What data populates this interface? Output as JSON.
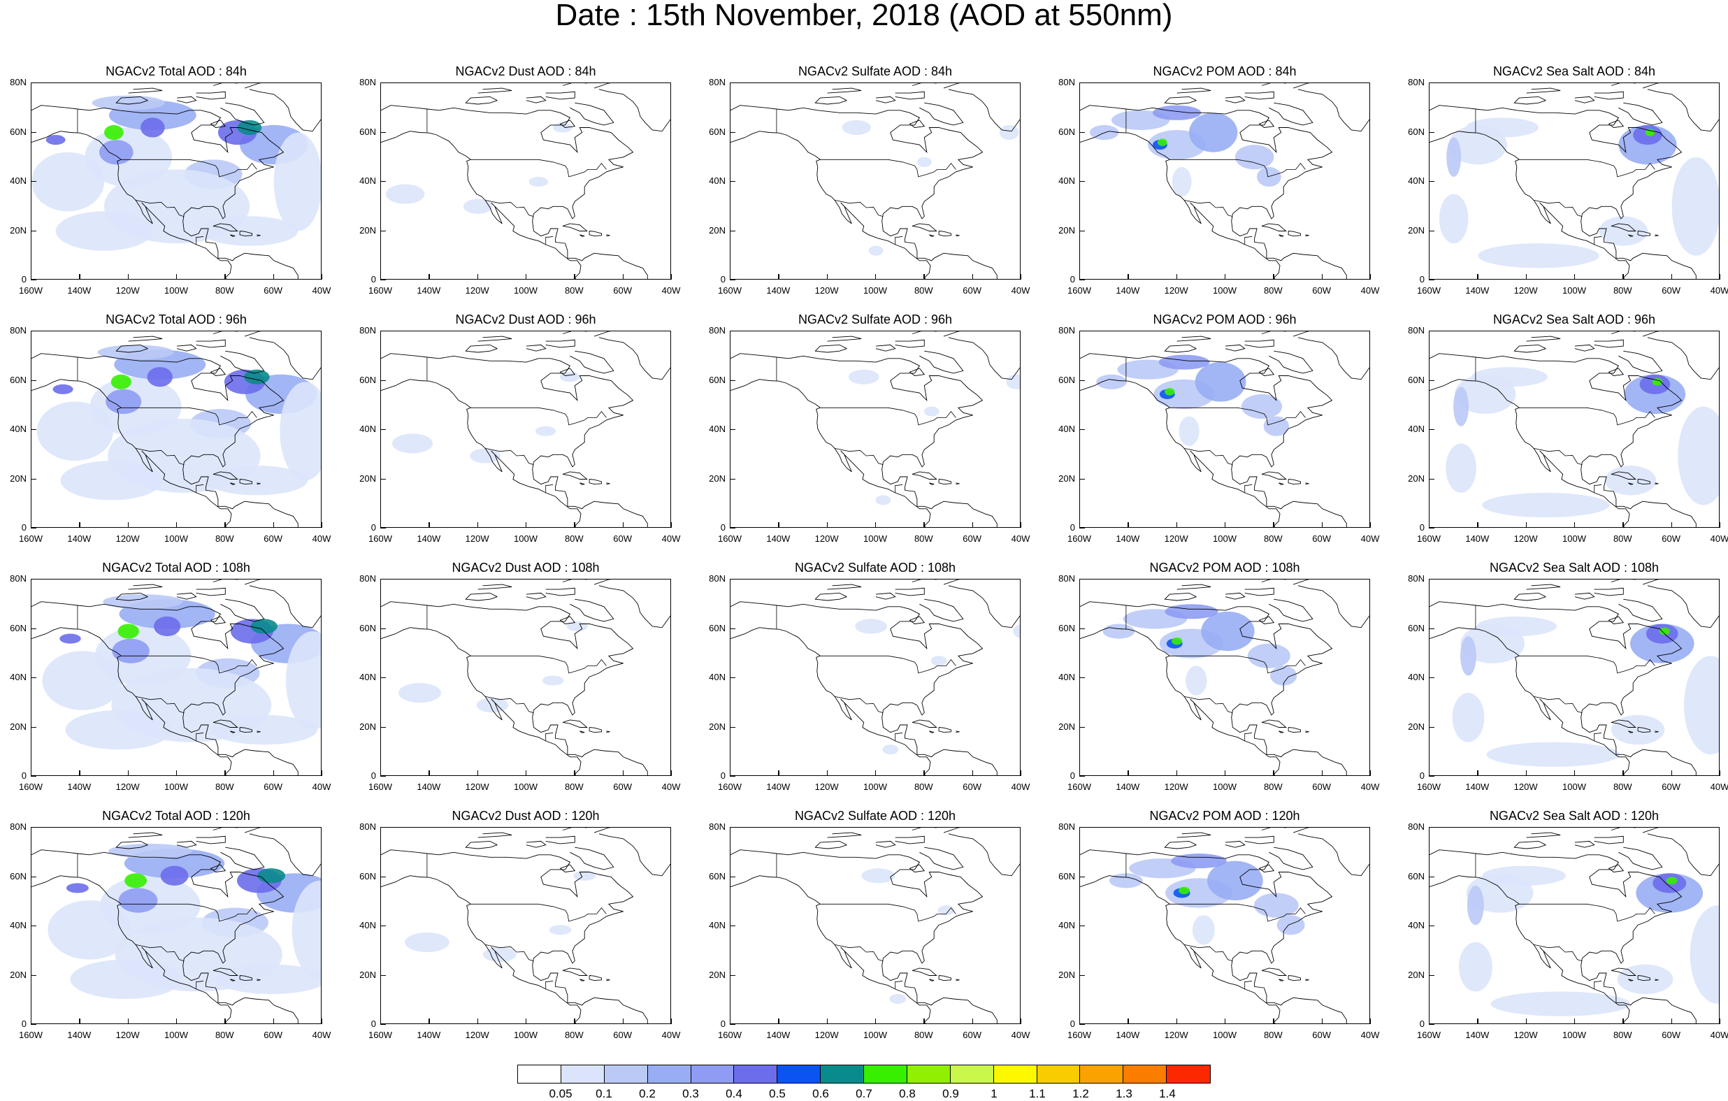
{
  "title": "Date : 15th November, 2018 (AOD at 550nm)",
  "colorbar": {
    "colors": [
      "#ffffff",
      "#dbe4fb",
      "#bac9f6",
      "#98adf4",
      "#8e9cf3",
      "#6c6deb",
      "#0a55f2",
      "#0a8b8b",
      "#36f000",
      "#91f000",
      "#c9f74a",
      "#fbf800",
      "#f9cc00",
      "#f9a200",
      "#fb7d00",
      "#fb2800"
    ],
    "labels": [
      "0.05",
      "0.1",
      "0.2",
      "0.3",
      "0.4",
      "0.5",
      "0.6",
      "0.7",
      "0.8",
      "0.9",
      "1",
      "1.1",
      "1.2",
      "1.3",
      "1.4"
    ]
  },
  "axes": {
    "lat_labels": [
      "80N",
      "60N",
      "40N",
      "20N",
      "0"
    ],
    "lon_labels": [
      "160W",
      "140W",
      "120W",
      "100W",
      "80W",
      "60W",
      "40W"
    ]
  },
  "panels": [
    {
      "title": "NGACv2 Total AOD : 84h",
      "species": "total",
      "hour": 84
    },
    {
      "title": "NGACv2 Dust AOD : 84h",
      "species": "dust",
      "hour": 84
    },
    {
      "title": "NGACv2 Sulfate AOD : 84h",
      "species": "sulfate",
      "hour": 84
    },
    {
      "title": "NGACv2 POM AOD : 84h",
      "species": "pom",
      "hour": 84
    },
    {
      "title": "NGACv2 Sea Salt AOD : 84h",
      "species": "seasalt",
      "hour": 84
    },
    {
      "title": "NGACv2 Total AOD : 96h",
      "species": "total",
      "hour": 96
    },
    {
      "title": "NGACv2 Dust AOD : 96h",
      "species": "dust",
      "hour": 96
    },
    {
      "title": "NGACv2 Sulfate AOD : 96h",
      "species": "sulfate",
      "hour": 96
    },
    {
      "title": "NGACv2 POM AOD : 96h",
      "species": "pom",
      "hour": 96
    },
    {
      "title": "NGACv2 Sea Salt AOD : 96h",
      "species": "seasalt",
      "hour": 96
    },
    {
      "title": "NGACv2 Total AOD : 108h",
      "species": "total",
      "hour": 108
    },
    {
      "title": "NGACv2 Dust AOD : 108h",
      "species": "dust",
      "hour": 108
    },
    {
      "title": "NGACv2 Sulfate AOD : 108h",
      "species": "sulfate",
      "hour": 108
    },
    {
      "title": "NGACv2 POM AOD : 108h",
      "species": "pom",
      "hour": 108
    },
    {
      "title": "NGACv2 Sea Salt AOD : 108h",
      "species": "seasalt",
      "hour": 108
    },
    {
      "title": "NGACv2 Total AOD : 120h",
      "species": "total",
      "hour": 120
    },
    {
      "title": "NGACv2 Dust AOD : 120h",
      "species": "dust",
      "hour": 120
    },
    {
      "title": "NGACv2 Sulfate AOD : 120h",
      "species": "sulfate",
      "hour": 120
    },
    {
      "title": "NGACv2 POM AOD : 120h",
      "species": "pom",
      "hour": 120
    },
    {
      "title": "NGACv2 Sea Salt  AOD : 120h",
      "species": "seasalt",
      "hour": 120
    }
  ]
}
